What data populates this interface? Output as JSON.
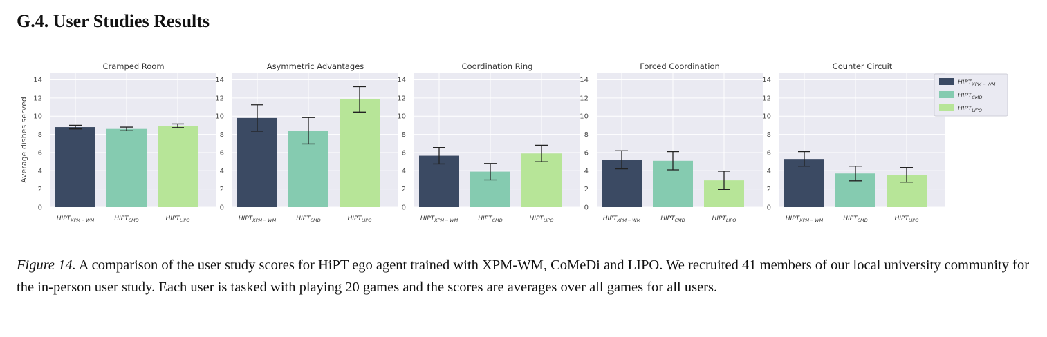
{
  "section_heading": "G.4. User Studies Results",
  "caption": {
    "label": "Figure 14.",
    "text": "A comparison of the user study scores for HiPT ego agent trained with XPM-WM, CoMeDi and LIPO. We recruited 41 members of our local university community for the in-person user study. Each user is tasked with playing 20 games and the scores are averages over all games for all users."
  },
  "chart_data": [
    {
      "type": "bar",
      "title": "Cramped Room",
      "ylabel": "Average dishes served",
      "categories": [
        "HIPT_XPM-WM",
        "HIPT_CMD",
        "HIPT_LIPO"
      ],
      "values": [
        8.8,
        8.6,
        8.95
      ],
      "errors": [
        0.2,
        0.2,
        0.2
      ],
      "ylim": [
        0,
        14.8
      ],
      "yticks": [
        0,
        2,
        4,
        6,
        8,
        10,
        12,
        14
      ]
    },
    {
      "type": "bar",
      "title": "Asymmetric Advantages",
      "ylabel": "",
      "categories": [
        "HIPT_XPM-WM",
        "HIPT_CMD",
        "HIPT_LIPO"
      ],
      "values": [
        9.8,
        8.4,
        11.85
      ],
      "errors": [
        1.45,
        1.45,
        1.4
      ],
      "ylim": [
        0,
        14.8
      ],
      "yticks": [
        0,
        2,
        4,
        6,
        8,
        10,
        12,
        14
      ]
    },
    {
      "type": "bar",
      "title": "Coordination Ring",
      "ylabel": "",
      "categories": [
        "HIPT_XPM-WM",
        "HIPT_CMD",
        "HIPT_LIPO"
      ],
      "values": [
        5.65,
        3.9,
        5.9
      ],
      "errors": [
        0.9,
        0.9,
        0.9
      ],
      "ylim": [
        0,
        14.8
      ],
      "yticks": [
        0,
        2,
        4,
        6,
        8,
        10,
        12,
        14
      ]
    },
    {
      "type": "bar",
      "title": "Forced Coordination",
      "ylabel": "",
      "categories": [
        "HIPT_XPM-WM",
        "HIPT_CMD",
        "HIPT_LIPO"
      ],
      "values": [
        5.2,
        5.1,
        2.95
      ],
      "errors": [
        1.0,
        1.0,
        1.0
      ],
      "ylim": [
        0,
        14.8
      ],
      "yticks": [
        0,
        2,
        4,
        6,
        8,
        10,
        12,
        14
      ]
    },
    {
      "type": "bar",
      "title": "Counter Circuit",
      "ylabel": "",
      "categories": [
        "HIPT_XPM-WM",
        "HIPT_CMD",
        "HIPT_LIPO"
      ],
      "values": [
        5.3,
        3.7,
        3.55
      ],
      "errors": [
        0.8,
        0.8,
        0.8
      ],
      "ylim": [
        0,
        14.8
      ],
      "yticks": [
        0,
        2,
        4,
        6,
        8,
        10,
        12,
        14
      ]
    }
  ],
  "tick_labels": [
    {
      "base": "HIPT",
      "sub": "XPM − WM"
    },
    {
      "base": "HIPT",
      "sub": "CMD"
    },
    {
      "base": "HIPT",
      "sub": "LIPO"
    }
  ],
  "legend": {
    "placement": "right",
    "entries": [
      {
        "base": "HIPT",
        "sub": "XPM − WM",
        "color": "#3b4a63"
      },
      {
        "base": "HIPT",
        "sub": "CMD",
        "color": "#85cbb0"
      },
      {
        "base": "HIPT",
        "sub": "LIPO",
        "color": "#b7e598"
      }
    ]
  },
  "style": {
    "plot_bg": "#eaeaf2",
    "grid": "#ffffff",
    "tick_text": "#4a4a4a"
  }
}
